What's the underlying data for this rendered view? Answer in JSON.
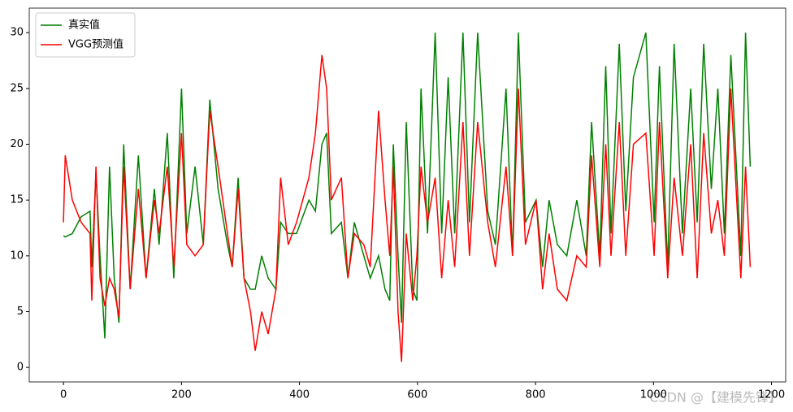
{
  "chart_data": {
    "type": "line",
    "x": [
      0,
      3,
      15,
      30,
      45,
      48,
      55,
      62,
      70,
      78,
      86,
      94,
      102,
      113,
      127,
      140,
      154,
      162,
      176,
      187,
      200,
      209,
      223,
      237,
      248,
      262,
      278,
      286,
      296,
      306,
      317,
      325,
      336,
      347,
      360,
      368,
      381,
      395,
      416,
      427,
      438,
      446,
      454,
      471,
      482,
      493,
      509,
      520,
      534,
      545,
      553,
      559,
      567,
      573,
      581,
      592,
      599,
      606,
      617,
      630,
      641,
      652,
      663,
      677,
      688,
      702,
      719,
      732,
      750,
      761,
      771,
      783,
      801,
      812,
      823,
      837,
      853,
      870,
      886,
      895,
      909,
      919,
      928,
      942,
      953,
      966,
      987,
      1001,
      1010,
      1024,
      1035,
      1049,
      1063,
      1074,
      1085,
      1098,
      1109,
      1120,
      1131,
      1148,
      1156,
      1164
    ],
    "series": [
      {
        "name": "真实值",
        "color": "#008000",
        "values": [
          11.8,
          11.7,
          12,
          13.5,
          14,
          9,
          17.5,
          10,
          2.6,
          18,
          8,
          4,
          20,
          7,
          19,
          8,
          16,
          11,
          21,
          8,
          25,
          12,
          18,
          11,
          24,
          16,
          11,
          9,
          17,
          8,
          7,
          7,
          10,
          8,
          7,
          13,
          12,
          12,
          15,
          14,
          20,
          21,
          12,
          13,
          8,
          13,
          10,
          8,
          10,
          7,
          6,
          20,
          10,
          4,
          22,
          7,
          6,
          25,
          12,
          30,
          12,
          26,
          12,
          30,
          13,
          30,
          14,
          11,
          25,
          10,
          30,
          13,
          15,
          9,
          15,
          11,
          10,
          15,
          10,
          22,
          10,
          27,
          12,
          29,
          14,
          26,
          30,
          13,
          27,
          9,
          29,
          12,
          25,
          13,
          29,
          16,
          25,
          12,
          28,
          10,
          30,
          18
        ]
      },
      {
        "name": "VGG预测值",
        "color": "#ff0000",
        "values": [
          13,
          19,
          15,
          13,
          12,
          6,
          18,
          8,
          5.5,
          8,
          7,
          4.5,
          18,
          7,
          16,
          8,
          15,
          12,
          18,
          9,
          21,
          11,
          10,
          11,
          23,
          18,
          12,
          9,
          16,
          8,
          5,
          1.5,
          5,
          3,
          7,
          17,
          11,
          13,
          17,
          21,
          28,
          25,
          15,
          17,
          8,
          12,
          11,
          9,
          23,
          15,
          10,
          18,
          5,
          0.5,
          12,
          6,
          10,
          18,
          13,
          17,
          8,
          15,
          9,
          22,
          10,
          22,
          13,
          9,
          18,
          10,
          25,
          11,
          15,
          7,
          12,
          7,
          6,
          10,
          9,
          19,
          9,
          20,
          10,
          22,
          10,
          20,
          21,
          10,
          22,
          8,
          17,
          10,
          20,
          8,
          21,
          12,
          15,
          10,
          25,
          8,
          18,
          9
        ]
      }
    ],
    "xlim": [
      -58,
      1224
    ],
    "ylim": [
      -1.3,
      32.2
    ],
    "xticks": [
      0,
      200,
      400,
      600,
      800,
      1000,
      1200
    ],
    "yticks": [
      0,
      5,
      10,
      15,
      20,
      25,
      30
    ],
    "legend": "upper left"
  },
  "watermark": "CSDN @【建模先锋】"
}
